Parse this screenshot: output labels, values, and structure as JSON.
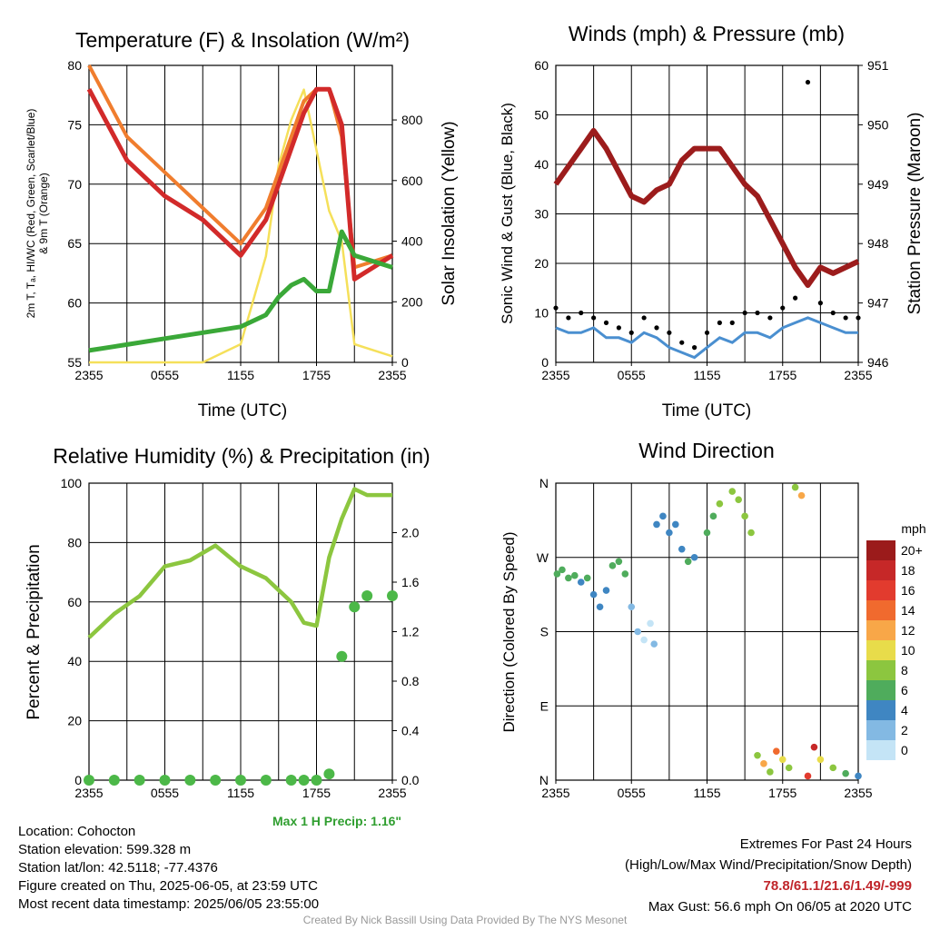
{
  "panels": {
    "temperature": {
      "title": "Temperature (F) & Insolation (W/m²)",
      "ylabel_left_line1": "2m T, Tₐ, HI/WC (Red, Green, Scarlet/Blue)",
      "ylabel_left_line2": "& 9m T (Orange)",
      "ylabel_right": "Solar Insolation (Yellow)",
      "xlabel": "Time (UTC)"
    },
    "winds": {
      "title": "Winds (mph) & Pressure (mb)",
      "ylabel_left": "Sonic Wind & Gust (Blue, Black)",
      "ylabel_right": "Station Pressure (Maroon)",
      "xlabel": "Time (UTC)"
    },
    "humidity": {
      "title": "Relative Humidity (%) & Precipitation (in)",
      "ylabel_left": "Percent & Precipitation",
      "max_precip_label": "Max 1 H Precip: 1.16\""
    },
    "direction": {
      "title": "Wind Direction",
      "ylabel_left": "Direction (Colored By Speed)",
      "colorbar_title": "mph",
      "colorbar_labels": [
        "20+",
        "18",
        "16",
        "14",
        "12",
        "10",
        "8",
        "6",
        "4",
        "2",
        "0"
      ]
    }
  },
  "info": {
    "location": "Location: Cohocton",
    "elevation": "Station elevation: 599.328 m",
    "latlon": "Station lat/lon: 42.5118; -77.4376",
    "created": "Figure created on Thu, 2025-06-05, at 23:59 UTC",
    "recent": "Most recent data timestamp: 2025/06/05 23:55:00",
    "extremes_title": "Extremes For Past 24 Hours",
    "extremes_legend": "(High/Low/Max Wind/Precipitation/Snow Depth)",
    "extremes_values": "78.8/61.1/21.6/1.49/-999",
    "max_gust": "Max Gust: 56.6 mph On 06/05 at 2020 UTC",
    "credit": "Created By Nick Bassill Using Data Provided By The NYS Mesonet"
  },
  "colors": {
    "temp": "#d22a2a",
    "temp9m": "#f07d2e",
    "dewpoint": "#3aa838",
    "solar": "#f5e05a",
    "wind": "#4a8fd0",
    "gust": "#000000",
    "pressure": "#9c1c1c",
    "rh": "#8cc63f",
    "precip": "#4cb848",
    "colorbar": [
      "#9b1b1b",
      "#c62828",
      "#e23b2e",
      "#f06a2e",
      "#f8a748",
      "#e8dc4a",
      "#8cc63f",
      "#4fac5c",
      "#3f86c2",
      "#83b9e3",
      "#c4e4f6"
    ]
  },
  "chart_data": [
    {
      "type": "line",
      "title": "Temperature (F) & Insolation (W/m²)",
      "xlabel": "Time (UTC)",
      "x_ticks": [
        "2355",
        "0555",
        "1155",
        "1755",
        "2355"
      ],
      "x_hours": [
        0,
        3,
        6,
        9,
        12,
        14,
        15,
        16,
        17,
        18,
        19,
        20,
        21,
        24
      ],
      "ylim": [
        55,
        80
      ],
      "yticks": [
        55,
        60,
        65,
        70,
        75,
        80
      ],
      "y2lim": [
        0,
        980
      ],
      "y2ticks": [
        0,
        200,
        400,
        600,
        800
      ],
      "series": [
        {
          "axis": "left",
          "values": [
            78,
            72,
            69,
            67,
            64,
            67,
            70,
            73,
            76,
            78,
            78,
            75,
            62,
            64
          ]
        },
        {
          "axis": "left",
          "values": [
            80,
            74,
            71,
            68,
            65,
            68,
            71,
            74,
            77,
            78,
            78,
            74,
            63,
            64
          ]
        },
        {
          "axis": "left",
          "values": [
            56,
            56.5,
            57,
            57.5,
            58,
            59,
            60.5,
            61.5,
            62,
            61,
            61,
            66,
            64,
            63
          ]
        },
        {
          "axis": "right",
          "values": [
            0,
            0,
            0,
            0,
            60,
            350,
            650,
            800,
            900,
            700,
            500,
            400,
            60,
            20
          ]
        }
      ]
    },
    {
      "type": "line",
      "title": "Winds (mph) & Pressure (mb)",
      "xlabel": "Time (UTC)",
      "x_ticks": [
        "2355",
        "0555",
        "1155",
        "1755",
        "2355"
      ],
      "x_hours": [
        0,
        1,
        2,
        3,
        4,
        5,
        6,
        7,
        8,
        9,
        10,
        11,
        12,
        13,
        14,
        15,
        16,
        17,
        18,
        19,
        20,
        21,
        22,
        23,
        24
      ],
      "ylim": [
        0,
        60
      ],
      "yticks": [
        0,
        10,
        20,
        30,
        40,
        50,
        60
      ],
      "y2lim": [
        946,
        951
      ],
      "y2ticks": [
        946,
        947,
        948,
        949,
        950,
        951
      ],
      "series": [
        {
          "axis": "left",
          "values": [
            7,
            6,
            6,
            7,
            5,
            5,
            4,
            6,
            5,
            3,
            2,
            1,
            3,
            5,
            4,
            6,
            6,
            5,
            7,
            8,
            9,
            8,
            7,
            6,
            6
          ]
        },
        {
          "axis": "left",
          "values": [
            11,
            9,
            10,
            9,
            8,
            7,
            6,
            9,
            7,
            6,
            4,
            3,
            6,
            8,
            8,
            10,
            10,
            9,
            11,
            13,
            56.6,
            12,
            10,
            9,
            9
          ]
        },
        {
          "axis": "right",
          "values": [
            949,
            949.3,
            949.6,
            949.9,
            949.6,
            949.2,
            948.8,
            948.7,
            948.9,
            949,
            949.4,
            949.6,
            949.6,
            949.6,
            949.3,
            949,
            948.8,
            948.4,
            948,
            947.6,
            947.3,
            947.6,
            947.5,
            947.6,
            947.7
          ]
        }
      ]
    },
    {
      "type": "line",
      "title": "Relative Humidity (%) & Precipitation (in)",
      "x_ticks": [
        "2355",
        "0555",
        "1155",
        "1755",
        "2355"
      ],
      "x_hours": [
        0,
        2,
        4,
        6,
        8,
        10,
        12,
        14,
        16,
        17,
        18,
        19,
        20,
        21,
        22,
        24
      ],
      "ylim": [
        0,
        100
      ],
      "yticks": [
        0,
        20,
        40,
        60,
        80,
        100
      ],
      "y2lim": [
        0,
        2.4
      ],
      "y2ticks": [
        0.0,
        0.4,
        0.8,
        1.2,
        1.6,
        2.0
      ],
      "series": [
        {
          "axis": "left",
          "values": [
            48,
            56,
            62,
            72,
            74,
            79,
            72,
            68,
            60,
            53,
            52,
            75,
            88,
            98,
            96,
            96
          ]
        },
        {
          "axis": "right",
          "values": [
            0,
            0,
            0,
            0,
            0,
            0,
            0,
            0,
            0,
            0,
            0,
            0.05,
            1.0,
            1.4,
            1.49,
            1.49
          ]
        }
      ]
    },
    {
      "type": "scatter",
      "title": "Wind Direction",
      "x_ticks": [
        "2355",
        "0555",
        "1155",
        "1755",
        "2355"
      ],
      "yticks": [
        "N",
        "E",
        "S",
        "W",
        "N"
      ],
      "ylim": [
        0,
        360
      ],
      "color_by": "wind speed (mph)",
      "points": [
        [
          0.1,
          250,
          6
        ],
        [
          0.5,
          255,
          7
        ],
        [
          1,
          245,
          6
        ],
        [
          1.5,
          248,
          7
        ],
        [
          2,
          240,
          5
        ],
        [
          2.5,
          245,
          6
        ],
        [
          3,
          225,
          4
        ],
        [
          3.5,
          210,
          4
        ],
        [
          4,
          230,
          5
        ],
        [
          4.5,
          260,
          6
        ],
        [
          5,
          265,
          7
        ],
        [
          5.5,
          250,
          6
        ],
        [
          6,
          210,
          2
        ],
        [
          6.5,
          180,
          2
        ],
        [
          7,
          170,
          1
        ],
        [
          7.5,
          190,
          1
        ],
        [
          7.8,
          165,
          2
        ],
        [
          8,
          310,
          4
        ],
        [
          8.5,
          320,
          5
        ],
        [
          9,
          300,
          5
        ],
        [
          9.5,
          310,
          4
        ],
        [
          10,
          280,
          5
        ],
        [
          10.5,
          265,
          6
        ],
        [
          11,
          270,
          5
        ],
        [
          12,
          300,
          7
        ],
        [
          12.5,
          320,
          7
        ],
        [
          13,
          335,
          8
        ],
        [
          14,
          350,
          9
        ],
        [
          14.5,
          340,
          8
        ],
        [
          15,
          320,
          9
        ],
        [
          15.5,
          300,
          8
        ],
        [
          16,
          30,
          8
        ],
        [
          16.5,
          20,
          12
        ],
        [
          17,
          10,
          9
        ],
        [
          17.5,
          35,
          14
        ],
        [
          18,
          25,
          10
        ],
        [
          18.5,
          15,
          8
        ],
        [
          19,
          355,
          9
        ],
        [
          19.5,
          345,
          12
        ],
        [
          20,
          5,
          16
        ],
        [
          20.5,
          40,
          18
        ],
        [
          21,
          25,
          10
        ],
        [
          22,
          15,
          8
        ],
        [
          23,
          8,
          6
        ],
        [
          24,
          5,
          4
        ]
      ],
      "colorbar": {
        "title": "mph",
        "levels": [
          "0",
          "2",
          "4",
          "6",
          "8",
          "10",
          "12",
          "14",
          "16",
          "18",
          "20+"
        ]
      }
    }
  ]
}
